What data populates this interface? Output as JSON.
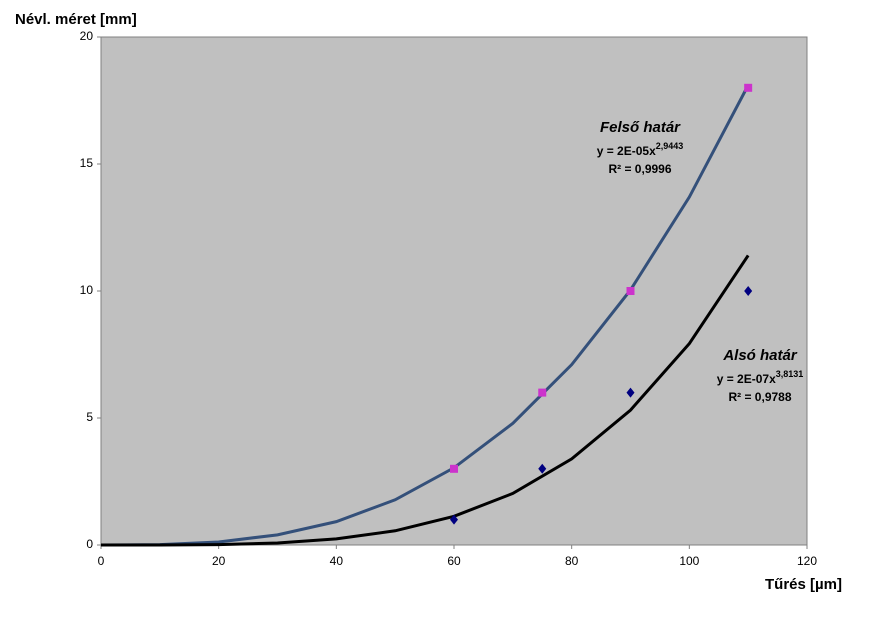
{
  "chart_data": {
    "type": "scatter",
    "y_label": "Névl. méret [mm]",
    "x_label": "Tűrés [µm]",
    "xlim": [
      0,
      120
    ],
    "xticks": [
      0,
      20,
      40,
      60,
      80,
      100,
      120
    ],
    "ylim": [
      0,
      20
    ],
    "yticks": [
      0,
      5,
      10,
      15,
      20
    ],
    "grid": false,
    "background": "#c0c0c0",
    "x": [
      60,
      75,
      90,
      110
    ],
    "series": [
      {
        "color": "#cc33cc",
        "marker": "square",
        "values": [
          3,
          6,
          10,
          18
        ]
      },
      {
        "color": "#000080",
        "marker": "diamond",
        "values": [
          1,
          3,
          6,
          10
        ]
      }
    ],
    "trendlines": [
      {
        "label": "Felső határ",
        "equation_base": "y = 2E-05x",
        "equation_exponent": "2,9443",
        "r2": "R² = 0,9996",
        "color": "#34507a",
        "x": [
          0,
          10,
          20,
          30,
          40,
          50,
          60,
          70,
          80,
          90,
          100,
          110
        ],
        "values": [
          0,
          0.016,
          0.12,
          0.4,
          0.92,
          1.78,
          3.04,
          4.79,
          7.1,
          10.04,
          13.7,
          18.1
        ]
      },
      {
        "label": "Alsó határ",
        "equation_base": "y = 2E-07x",
        "equation_exponent": "3,8131",
        "r2": "R² = 0,9788",
        "color": "#000000",
        "x": [
          0,
          10,
          20,
          30,
          40,
          50,
          60,
          70,
          80,
          90,
          100,
          110
        ],
        "values": [
          0,
          0.0012,
          0.017,
          0.08,
          0.24,
          0.56,
          1.13,
          2.03,
          3.39,
          5.31,
          7.93,
          11.4
        ]
      }
    ]
  }
}
